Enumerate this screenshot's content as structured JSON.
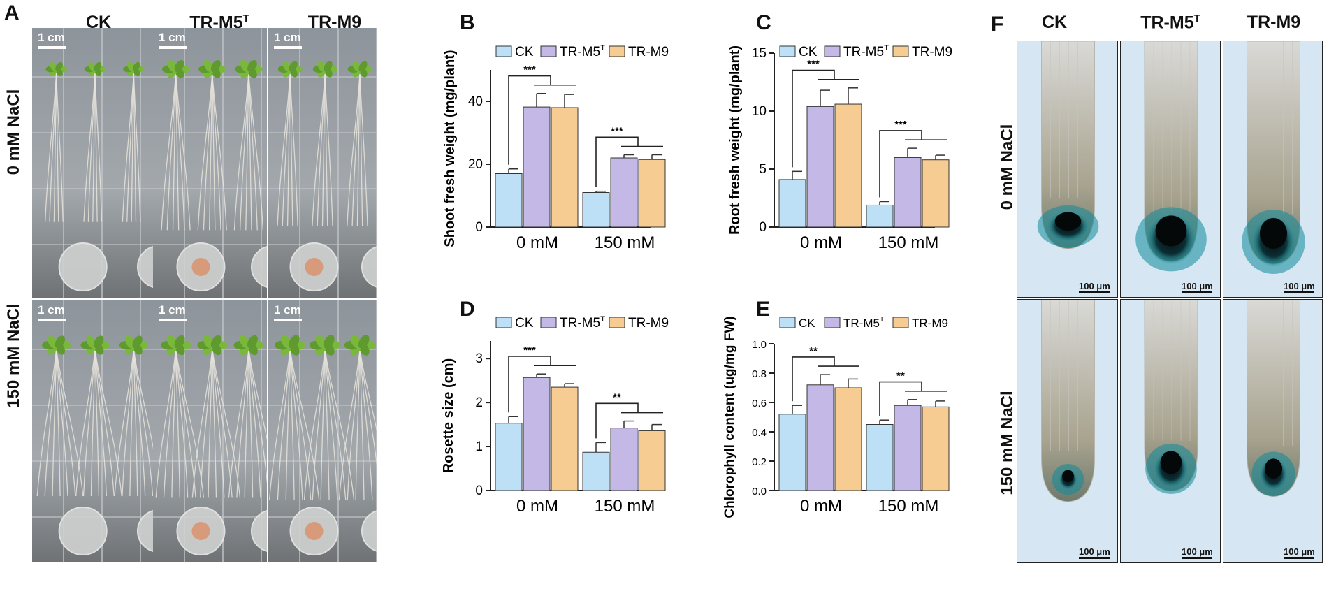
{
  "panels": {
    "A": {
      "label": "A",
      "columns": [
        "CK",
        "TR-M5",
        "TR-M9"
      ],
      "col_superscript": "T",
      "rows": [
        "0 mM NaCl",
        "150 mM NaCl"
      ],
      "scale_label": "1 cm"
    },
    "F": {
      "label": "F",
      "columns": [
        "CK",
        "TR-M5",
        "TR-M9"
      ],
      "col_superscript": "T",
      "rows": [
        "0 mM NaCl",
        "150 mM NaCl"
      ],
      "scale_label": "100 μm"
    }
  },
  "colors": {
    "CK": "#bde0f7",
    "TR-M5T": "#c4b9e6",
    "TR-M9": "#f6cc92",
    "stain": "#0a7f8f"
  },
  "chart_data": [
    {
      "id": "B",
      "label": "B",
      "type": "bar",
      "ylabel": "Shoot fresh weight (mg/plant)",
      "ylim": [
        0,
        50
      ],
      "yticks": [
        0,
        20,
        40
      ],
      "categories": [
        "0 mM",
        "150 mM"
      ],
      "legend": [
        "CK",
        "TR-M5",
        "TR-M9"
      ],
      "legend_sup": [
        "",
        "T",
        ""
      ],
      "series": [
        {
          "name": "CK",
          "values": [
            17,
            11
          ],
          "errors": [
            1.5,
            0.4
          ]
        },
        {
          "name": "TR-M5T",
          "values": [
            38.2,
            22
          ],
          "errors": [
            4.3,
            1
          ]
        },
        {
          "name": "TR-M9",
          "values": [
            38,
            21.5
          ],
          "errors": [
            4.2,
            1.5
          ]
        }
      ],
      "significance": [
        "***",
        "***"
      ]
    },
    {
      "id": "C",
      "label": "C",
      "type": "bar",
      "ylabel": "Root fresh weight (mg/plant)",
      "ylim": [
        0,
        15
      ],
      "yticks": [
        0,
        5,
        10,
        15
      ],
      "categories": [
        "0 mM",
        "150 mM"
      ],
      "legend": [
        "CK",
        "TR-M5",
        "TR-M9"
      ],
      "legend_sup": [
        "",
        "T",
        ""
      ],
      "series": [
        {
          "name": "CK",
          "values": [
            4.1,
            1.9
          ],
          "errors": [
            0.7,
            0.3
          ]
        },
        {
          "name": "TR-M5T",
          "values": [
            10.4,
            6
          ],
          "errors": [
            1.4,
            0.8
          ]
        },
        {
          "name": "TR-M9",
          "values": [
            10.6,
            5.8
          ],
          "errors": [
            1.4,
            0.4
          ]
        }
      ],
      "significance": [
        "***",
        "***"
      ]
    },
    {
      "id": "D",
      "label": "D",
      "type": "bar",
      "ylabel": "Rosette size (cm)",
      "ylim": [
        0,
        3.4
      ],
      "yticks": [
        0,
        1,
        2,
        3
      ],
      "categories": [
        "0 mM",
        "150 mM"
      ],
      "legend": [
        "CK",
        "TR-M5",
        "TR-M9"
      ],
      "legend_sup": [
        "",
        "T",
        ""
      ],
      "series": [
        {
          "name": "CK",
          "values": [
            1.53,
            0.87
          ],
          "errors": [
            0.15,
            0.22
          ]
        },
        {
          "name": "TR-M5T",
          "values": [
            2.57,
            1.42
          ],
          "errors": [
            0.08,
            0.16
          ]
        },
        {
          "name": "TR-M9",
          "values": [
            2.35,
            1.36
          ],
          "errors": [
            0.08,
            0.14
          ]
        }
      ],
      "significance": [
        "***",
        "**"
      ]
    },
    {
      "id": "E",
      "label": "E",
      "type": "bar",
      "ylabel": "Chlorophyll content (ug/mg FW)",
      "ylim": [
        0,
        1.0
      ],
      "yticks": [
        "0.0",
        "0.2",
        "0.4",
        "0.6",
        "0.8",
        "1.0"
      ],
      "categories": [
        "0 mM",
        "150 mM"
      ],
      "legend": [
        "CK",
        "TR-M5",
        "TR-M9"
      ],
      "legend_sup": [
        "",
        "T",
        ""
      ],
      "series": [
        {
          "name": "CK",
          "values": [
            0.52,
            0.45
          ],
          "errors": [
            0.06,
            0.03
          ]
        },
        {
          "name": "TR-M5T",
          "values": [
            0.72,
            0.58
          ],
          "errors": [
            0.07,
            0.04
          ]
        },
        {
          "name": "TR-M9",
          "values": [
            0.7,
            0.57
          ],
          "errors": [
            0.06,
            0.04
          ]
        }
      ],
      "significance": [
        "**",
        "**"
      ]
    }
  ]
}
